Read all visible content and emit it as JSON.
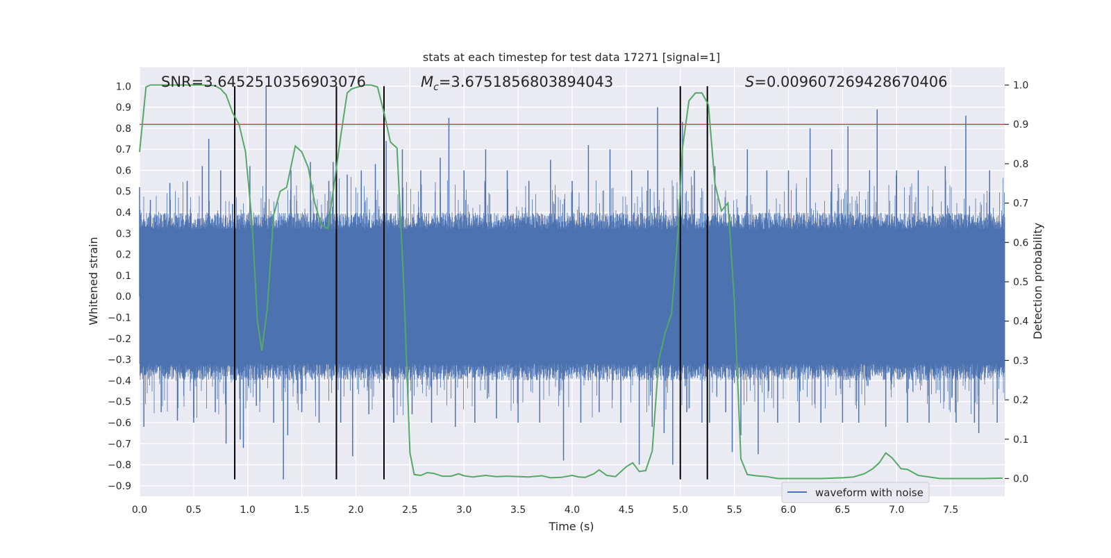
{
  "chart_data": {
    "type": "line",
    "title": "stats at each timestep for test data 17271 [signal=1]",
    "xlabel": "Time (s)",
    "ylabel": "Whitened strain",
    "y2label": "Detection probability",
    "xlim": [
      0.0,
      8.0
    ],
    "ylim": [
      -0.95,
      1.09
    ],
    "y2lim": [
      -0.045,
      1.045
    ],
    "xticks": [
      0.0,
      0.5,
      1.0,
      1.5,
      2.0,
      2.5,
      3.0,
      3.5,
      4.0,
      4.5,
      5.0,
      5.5,
      6.0,
      6.5,
      7.0,
      7.5
    ],
    "xtick_labels": [
      "0.0",
      "0.5",
      "1.0",
      "1.5",
      "2.0",
      "2.5",
      "3.0",
      "3.5",
      "4.0",
      "4.5",
      "5.0",
      "5.5",
      "6.0",
      "6.5",
      "7.0",
      "7.5"
    ],
    "yticks": [
      -0.9,
      -0.8,
      -0.7,
      -0.6,
      -0.5,
      -0.4,
      -0.3,
      -0.2,
      -0.1,
      0.0,
      0.1,
      0.2,
      0.3,
      0.4,
      0.5,
      0.6,
      0.7,
      0.8,
      0.9,
      1.0
    ],
    "ytick_labels": [
      "−0.9",
      "−0.8",
      "−0.7",
      "−0.6",
      "−0.5",
      "−0.4",
      "−0.3",
      "−0.2",
      "−0.1",
      "0.0",
      "0.1",
      "0.2",
      "0.3",
      "0.4",
      "0.5",
      "0.6",
      "0.7",
      "0.8",
      "0.9",
      "1.0"
    ],
    "y2ticks": [
      0.0,
      0.1,
      0.2,
      0.3,
      0.4,
      0.5,
      0.6,
      0.7,
      0.8,
      0.9,
      1.0
    ],
    "y2tick_labels": [
      "0.0",
      "0.1",
      "0.2",
      "0.3",
      "0.4",
      "0.5",
      "0.6",
      "0.7",
      "0.8",
      "0.9",
      "1.0"
    ],
    "annotations": {
      "snr": "SNR=3.6452510356903076",
      "mc_symbol": "M",
      "mc_sub": "c",
      "mc_value": "=3.6751856803894043",
      "s_symbol": "S",
      "s_value": "=0.009607269428670406"
    },
    "threshold": {
      "axis": "y2",
      "value": 0.9,
      "color": "#c44e52"
    },
    "vlines": {
      "x": [
        0.88,
        1.82,
        2.26,
        5.0,
        5.25
      ],
      "ymin": -0.87,
      "ymax": 1.0,
      "color": "#000000"
    },
    "waveform": {
      "name": "waveform with noise",
      "color": "#4c72b0",
      "core_envelope": 0.3,
      "spikes": [
        {
          "x": 0.0,
          "y": 0.52
        },
        {
          "x": 0.04,
          "y": -0.62
        },
        {
          "x": 0.1,
          "y": 0.46
        },
        {
          "x": 0.2,
          "y": -0.55
        },
        {
          "x": 0.28,
          "y": 0.54
        },
        {
          "x": 0.35,
          "y": -0.59
        },
        {
          "x": 0.44,
          "y": 0.55
        },
        {
          "x": 0.5,
          "y": -0.6
        },
        {
          "x": 0.58,
          "y": 0.62
        },
        {
          "x": 0.64,
          "y": 0.75
        },
        {
          "x": 0.7,
          "y": -0.55
        },
        {
          "x": 0.75,
          "y": 0.6
        },
        {
          "x": 0.8,
          "y": -0.7
        },
        {
          "x": 0.86,
          "y": 0.44
        },
        {
          "x": 0.93,
          "y": -0.68
        },
        {
          "x": 0.96,
          "y": -0.72
        },
        {
          "x": 1.02,
          "y": 0.62
        },
        {
          "x": 1.08,
          "y": -0.52
        },
        {
          "x": 1.17,
          "y": 1.0
        },
        {
          "x": 1.24,
          "y": -0.6
        },
        {
          "x": 1.33,
          "y": -0.87
        },
        {
          "x": 1.37,
          "y": -0.66
        },
        {
          "x": 1.4,
          "y": 0.6
        },
        {
          "x": 1.5,
          "y": -0.55
        },
        {
          "x": 1.58,
          "y": 0.64
        },
        {
          "x": 1.66,
          "y": -0.6
        },
        {
          "x": 1.75,
          "y": 0.55
        },
        {
          "x": 1.79,
          "y": 0.64
        },
        {
          "x": 1.86,
          "y": -0.6
        },
        {
          "x": 1.92,
          "y": 0.58
        },
        {
          "x": 1.97,
          "y": -0.76
        },
        {
          "x": 2.05,
          "y": 0.6
        },
        {
          "x": 2.12,
          "y": -0.56
        },
        {
          "x": 2.18,
          "y": 0.63
        },
        {
          "x": 2.28,
          "y": 0.74
        },
        {
          "x": 2.35,
          "y": -0.6
        },
        {
          "x": 2.43,
          "y": 0.7
        },
        {
          "x": 2.52,
          "y": -0.56
        },
        {
          "x": 2.6,
          "y": 0.6
        },
        {
          "x": 2.7,
          "y": -0.6
        },
        {
          "x": 2.78,
          "y": 0.66
        },
        {
          "x": 2.86,
          "y": 0.85
        },
        {
          "x": 2.92,
          "y": -0.62
        },
        {
          "x": 3.0,
          "y": 0.6
        },
        {
          "x": 3.1,
          "y": -0.6
        },
        {
          "x": 3.2,
          "y": 0.7
        },
        {
          "x": 3.3,
          "y": -0.58
        },
        {
          "x": 3.4,
          "y": 0.6
        },
        {
          "x": 3.5,
          "y": -0.6
        },
        {
          "x": 3.6,
          "y": 0.55
        },
        {
          "x": 3.7,
          "y": -0.6
        },
        {
          "x": 3.8,
          "y": 0.65
        },
        {
          "x": 3.92,
          "y": -0.78
        },
        {
          "x": 4.0,
          "y": 0.55
        },
        {
          "x": 4.08,
          "y": -0.6
        },
        {
          "x": 4.15,
          "y": 0.72
        },
        {
          "x": 4.25,
          "y": -0.55
        },
        {
          "x": 4.35,
          "y": 0.7
        },
        {
          "x": 4.45,
          "y": -0.6
        },
        {
          "x": 4.55,
          "y": 0.6
        },
        {
          "x": 4.62,
          "y": -0.8
        },
        {
          "x": 4.7,
          "y": 0.6
        },
        {
          "x": 4.74,
          "y": -0.62
        },
        {
          "x": 4.79,
          "y": 0.9
        },
        {
          "x": 4.85,
          "y": -0.65
        },
        {
          "x": 4.93,
          "y": -0.8
        },
        {
          "x": 5.02,
          "y": 0.83
        },
        {
          "x": 5.06,
          "y": -0.55
        },
        {
          "x": 5.13,
          "y": 0.6
        },
        {
          "x": 5.2,
          "y": -0.6
        },
        {
          "x": 5.27,
          "y": -0.6
        },
        {
          "x": 5.32,
          "y": 0.62
        },
        {
          "x": 5.42,
          "y": -0.55
        },
        {
          "x": 5.48,
          "y": -0.74
        },
        {
          "x": 5.56,
          "y": -0.66
        },
        {
          "x": 5.62,
          "y": 0.7
        },
        {
          "x": 5.72,
          "y": -0.75
        },
        {
          "x": 5.8,
          "y": 0.6
        },
        {
          "x": 5.9,
          "y": -0.6
        },
        {
          "x": 6.0,
          "y": 0.6
        },
        {
          "x": 6.1,
          "y": -0.6
        },
        {
          "x": 6.2,
          "y": 0.8
        },
        {
          "x": 6.3,
          "y": -0.6
        },
        {
          "x": 6.4,
          "y": 0.7
        },
        {
          "x": 6.5,
          "y": -0.6
        },
        {
          "x": 6.55,
          "y": 0.81
        },
        {
          "x": 6.65,
          "y": -0.6
        },
        {
          "x": 6.75,
          "y": 0.6
        },
        {
          "x": 6.82,
          "y": 0.89
        },
        {
          "x": 6.9,
          "y": -0.62
        },
        {
          "x": 7.0,
          "y": 0.6
        },
        {
          "x": 7.1,
          "y": -0.6
        },
        {
          "x": 7.2,
          "y": 0.6
        },
        {
          "x": 7.3,
          "y": -0.6
        },
        {
          "x": 7.45,
          "y": 0.62
        },
        {
          "x": 7.55,
          "y": -0.6
        },
        {
          "x": 7.64,
          "y": 0.86
        },
        {
          "x": 7.72,
          "y": -0.6
        },
        {
          "x": 7.76,
          "y": -0.65
        },
        {
          "x": 7.86,
          "y": 0.6
        },
        {
          "x": 7.93,
          "y": -0.6
        }
      ]
    },
    "probability": {
      "color": "#55a868",
      "x": [
        0.0,
        0.06,
        0.1,
        0.2,
        0.3,
        0.4,
        0.5,
        0.6,
        0.7,
        0.75,
        0.8,
        0.86,
        0.92,
        0.98,
        1.04,
        1.09,
        1.13,
        1.18,
        1.24,
        1.3,
        1.36,
        1.44,
        1.5,
        1.56,
        1.62,
        1.68,
        1.74,
        1.8,
        1.86,
        1.92,
        1.96,
        2.02,
        2.08,
        2.14,
        2.2,
        2.26,
        2.32,
        2.38,
        2.44,
        2.5,
        2.54,
        2.6,
        2.66,
        2.72,
        2.8,
        2.88,
        2.95,
        3.0,
        3.08,
        3.2,
        3.3,
        3.4,
        3.6,
        3.72,
        3.8,
        3.9,
        4.0,
        4.06,
        4.12,
        4.2,
        4.25,
        4.32,
        4.4,
        4.5,
        4.56,
        4.62,
        4.68,
        4.74,
        4.8,
        4.86,
        4.92,
        4.98,
        5.02,
        5.08,
        5.14,
        5.2,
        5.26,
        5.32,
        5.38,
        5.44,
        5.5,
        5.56,
        5.62,
        5.7,
        5.8,
        5.9,
        6.0,
        6.3,
        6.5,
        6.6,
        6.7,
        6.78,
        6.84,
        6.9,
        6.96,
        7.04,
        7.1,
        7.2,
        7.4,
        7.6,
        7.8,
        7.98
      ],
      "y": [
        0.83,
        0.995,
        1.0,
        1.0,
        1.0,
        1.0,
        1.0,
        1.0,
        0.998,
        0.99,
        0.975,
        0.93,
        0.9,
        0.83,
        0.65,
        0.4,
        0.325,
        0.43,
        0.67,
        0.73,
        0.74,
        0.845,
        0.83,
        0.79,
        0.7,
        0.645,
        0.635,
        0.75,
        0.87,
        0.98,
        0.99,
        0.995,
        1.0,
        1.0,
        0.995,
        0.93,
        0.855,
        0.84,
        0.51,
        0.065,
        0.01,
        0.008,
        0.015,
        0.013,
        0.006,
        0.006,
        0.012,
        0.007,
        0.004,
        0.008,
        0.005,
        0.006,
        0.004,
        0.007,
        0.002,
        0.003,
        0.008,
        0.004,
        0.003,
        0.012,
        0.022,
        0.008,
        0.005,
        0.03,
        0.04,
        0.018,
        0.02,
        0.07,
        0.3,
        0.37,
        0.42,
        0.63,
        0.84,
        0.96,
        0.98,
        0.98,
        0.95,
        0.75,
        0.68,
        0.7,
        0.45,
        0.05,
        0.01,
        0.007,
        0.005,
        0.0,
        0.0,
        0.0,
        0.002,
        0.004,
        0.012,
        0.025,
        0.04,
        0.065,
        0.052,
        0.025,
        0.023,
        0.008,
        0.0,
        0.0,
        0.0,
        0.001
      ]
    },
    "legend": {
      "entries": [
        "waveform with noise"
      ],
      "placement": "lower-center"
    },
    "grid": true
  }
}
